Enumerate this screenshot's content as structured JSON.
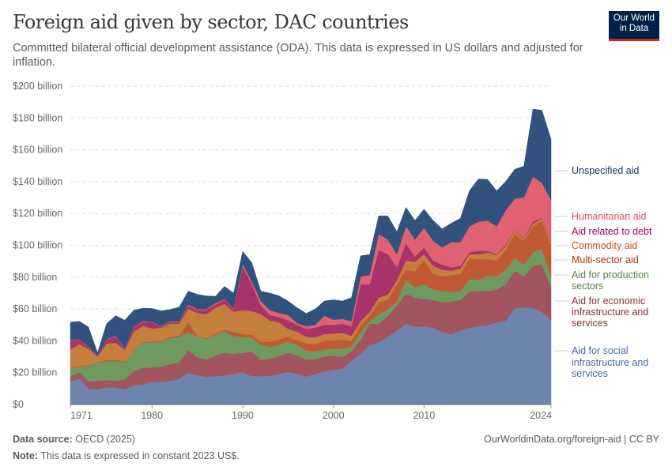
{
  "header": {
    "title": "Foreign aid given by sector, DAC countries",
    "subtitle": "Committed bilateral official development assistance (ODA). This data is expressed in US dollars and adjusted for inflation.",
    "logo": "Our World in Data"
  },
  "footer": {
    "source_label": "Data source:",
    "source": "OECD (2025)",
    "url": "OurWorldinData.org/foreign-aid | CC BY",
    "note_label": "Note:",
    "note": "This data is expressed in constant 2023 US$."
  },
  "chart_data": {
    "type": "area",
    "stacked": true,
    "ylim": [
      0,
      200
    ],
    "grid": "horizontal dashed",
    "legend": "right, inline labels",
    "yticks": [
      "$0",
      "$20 billion",
      "$40 billion",
      "$60 billion",
      "$80 billion",
      "$100 billion",
      "$120 billion",
      "$140 billion",
      "$160 billion",
      "$180 billion",
      "$200 billion"
    ],
    "xticks": [
      "1971",
      "1980",
      "1990",
      "2000",
      "2010",
      "2024"
    ],
    "x": [
      1971,
      1972,
      1973,
      1974,
      1975,
      1976,
      1977,
      1978,
      1979,
      1980,
      1981,
      1982,
      1983,
      1984,
      1985,
      1986,
      1987,
      1988,
      1989,
      1990,
      1991,
      1992,
      1993,
      1994,
      1995,
      1996,
      1997,
      1998,
      1999,
      2000,
      2001,
      2002,
      2003,
      2004,
      2005,
      2006,
      2007,
      2008,
      2009,
      2010,
      2011,
      2012,
      2013,
      2014,
      2015,
      2016,
      2017,
      2018,
      2019,
      2020,
      2021,
      2022,
      2023,
      2024
    ],
    "unit": "billion US$",
    "series": [
      {
        "name": "Aid for social infrastructure and services",
        "color": "#6d85ad",
        "label_color": "#4c6a9c",
        "values": [
          14.5,
          16.3,
          10,
          9.5,
          10.8,
          10.5,
          9.5,
          12.2,
          12.5,
          14.2,
          14.3,
          14.8,
          16.2,
          20,
          18.3,
          17.5,
          17.8,
          18.3,
          19.2,
          20.3,
          17.8,
          17.8,
          18,
          19.2,
          20.5,
          19.2,
          17.5,
          19.2,
          20.8,
          21.7,
          22.5,
          27.5,
          31.6,
          37.4,
          39,
          42.4,
          46.5,
          50.7,
          49,
          49,
          48.2,
          45.7,
          44,
          46.5,
          48.2,
          49.3,
          49.8,
          51.5,
          52.6,
          60.6,
          60.9,
          60.6,
          58.1,
          53.1
        ]
      },
      {
        "name": "Aid for economic infrastructure and services",
        "color": "#a2555f",
        "label_color": "#883039",
        "values": [
          3.3,
          4,
          4.5,
          5.5,
          4.5,
          4.5,
          6.3,
          9,
          10.5,
          9.1,
          9.4,
          10.5,
          10.3,
          14.2,
          11.2,
          10.8,
          13,
          14.2,
          12.5,
          12.2,
          15.5,
          10.4,
          10.7,
          11.3,
          12,
          11.6,
          10.8,
          9.1,
          9.5,
          8.8,
          7.5,
          5.8,
          9.1,
          13.3,
          11.7,
          13.2,
          15.7,
          19,
          18.2,
          17.4,
          17.4,
          18.5,
          20.7,
          19.1,
          22.7,
          22,
          21.5,
          20.7,
          22.9,
          23.5,
          19.6,
          26.5,
          29.8,
          20.7
        ]
      },
      {
        "name": "Aid for production sectors",
        "color": "#6f9a5f",
        "label_color": "#578145",
        "values": [
          4.7,
          3.5,
          9.7,
          11.2,
          11.9,
          12.5,
          10.7,
          13,
          15.8,
          15.9,
          15.5,
          16.4,
          16,
          11.3,
          13.3,
          12.9,
          12.9,
          13.7,
          11.1,
          10,
          8.9,
          9.3,
          7.5,
          7,
          7,
          6.7,
          5.5,
          5,
          4.4,
          4.5,
          5,
          3.3,
          5,
          1.6,
          5.8,
          4.2,
          2.5,
          8.3,
          6.6,
          9.1,
          6.6,
          7.1,
          5.8,
          5.7,
          7.9,
          7,
          9.5,
          8.3,
          9.1,
          8,
          7.4,
          8.6,
          9.9,
          6.7
        ]
      },
      {
        "name": "Multi-sector aid",
        "color": "#c05a35",
        "label_color": "#b13507",
        "values": [
          0.3,
          0.4,
          0.3,
          0.3,
          0.6,
          0.7,
          0.3,
          0.3,
          0.4,
          0.5,
          0.6,
          0.8,
          0.8,
          6.2,
          0.5,
          0.5,
          0.8,
          1,
          2.7,
          1.7,
          1.6,
          2,
          3.3,
          3.3,
          3,
          3,
          4.5,
          4.5,
          5.3,
          5.3,
          5.8,
          3.3,
          4.1,
          3.3,
          7.4,
          5.8,
          10.8,
          6.6,
          10,
          14.9,
          9.9,
          9.1,
          10.8,
          10.8,
          12.9,
          12.9,
          10.4,
          9.9,
          12.4,
          14.9,
          14.9,
          16.2,
          17.4,
          19.8
        ]
      },
      {
        "name": "Commodity aid",
        "color": "#c57e3b",
        "label_color": "#be5915",
        "values": [
          11.9,
          13.6,
          10.5,
          3.5,
          10.5,
          10.6,
          7.7,
          11.3,
          10.3,
          8.1,
          8.5,
          8.3,
          7.5,
          8.3,
          14.2,
          15,
          16.3,
          16.1,
          12.8,
          15,
          15,
          17.2,
          13.3,
          10.9,
          5,
          5.3,
          4.2,
          4.4,
          4.2,
          4.2,
          4.2,
          3.3,
          2.5,
          2.5,
          3.3,
          3.3,
          2.5,
          5.8,
          5.8,
          4.1,
          5,
          4.2,
          2.8,
          3.3,
          2.8,
          3.2,
          4.2,
          3.6,
          2.5,
          2.1,
          1.2,
          1.7,
          1.7,
          2.5
        ]
      },
      {
        "name": "Aid related to debt",
        "color": "#a8336b",
        "label_color": "#a2005e",
        "values": [
          5.3,
          3,
          0.8,
          0.5,
          2.5,
          4,
          0.5,
          2.5,
          2.5,
          3.9,
          0.5,
          0.9,
          0.9,
          2,
          1.7,
          2.8,
          2,
          2.5,
          1.7,
          27.5,
          17,
          5.6,
          3.4,
          3.3,
          5.3,
          4.2,
          5,
          6.1,
          5.8,
          5.5,
          5.8,
          5.8,
          23.2,
          17.4,
          29.8,
          25.6,
          8.2,
          10.8,
          3.3,
          4.2,
          3.3,
          3.3,
          2.1,
          1.7,
          1.2,
          2.1,
          1.1,
          0.5,
          0.8,
          0.3,
          0.5,
          1.3,
          0.3,
          0.3
        ]
      },
      {
        "name": "Humanitarian aid",
        "color": "#e06272",
        "label_color": "#e04d66",
        "values": [
          0.5,
          0.2,
          0.4,
          0.3,
          0.4,
          0.4,
          0.3,
          0.4,
          0.5,
          0.3,
          0.4,
          0.5,
          0.5,
          0.8,
          0.6,
          0.5,
          0.9,
          0.5,
          0.5,
          1.6,
          1.7,
          2.7,
          3,
          2.5,
          3.4,
          1.2,
          1.7,
          1.7,
          5.8,
          3.3,
          3,
          3.3,
          5,
          5.8,
          10,
          9.1,
          8.3,
          10.8,
          10.7,
          12.4,
          12.4,
          10.8,
          15.8,
          14.9,
          16.2,
          18.4,
          19.1,
          17.4,
          21.6,
          19.9,
          25.6,
          28.2,
          22,
          25.4
        ]
      },
      {
        "name": "Unspecified aid",
        "color": "#30527c",
        "label_color": "#163a66",
        "values": [
          11.2,
          11.2,
          12.5,
          1.7,
          9.6,
          12.6,
          17.7,
          10.5,
          8,
          8.3,
          9.6,
          7.5,
          9,
          8.4,
          9.4,
          8.2,
          4.3,
          7.9,
          9.5,
          7.9,
          11.7,
          6.2,
          10.8,
          10.8,
          8.8,
          9.6,
          8,
          10,
          9.2,
          12.5,
          11.2,
          14.9,
          12.9,
          12.9,
          11.5,
          14.9,
          14.1,
          11.8,
          12,
          11.6,
          12.8,
          11.6,
          11.9,
          14.9,
          22.4,
          26.8,
          25.8,
          22.4,
          18.2,
          18.5,
          19.6,
          42.5,
          45.6,
          38
        ]
      }
    ]
  }
}
